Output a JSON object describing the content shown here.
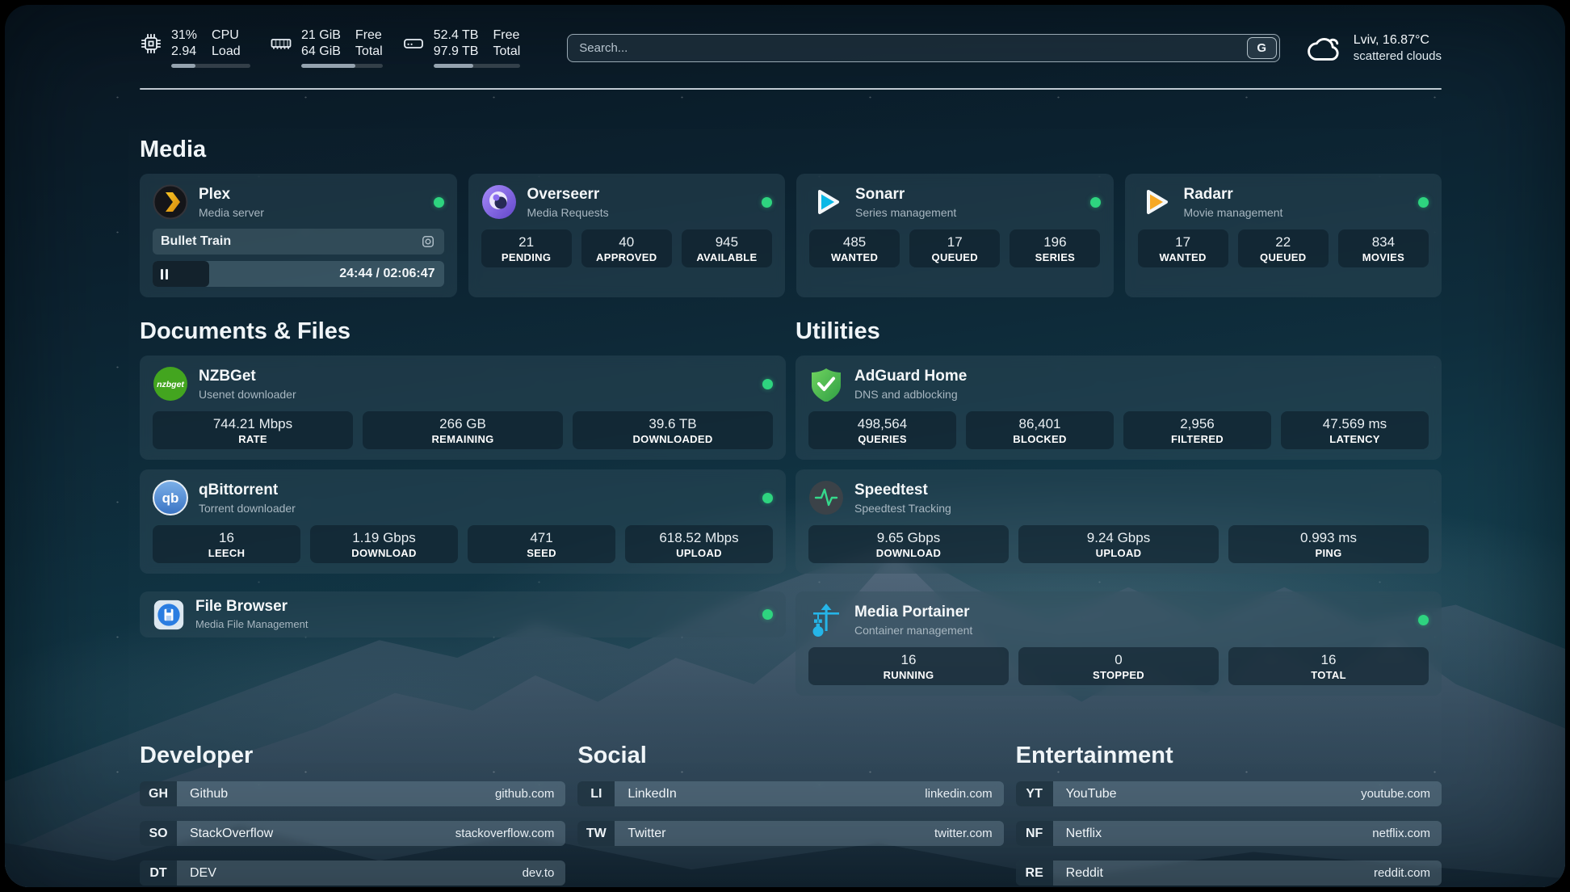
{
  "theme": {
    "status_online_color": "#2ed47f",
    "progress_fill_color": "#95a3af",
    "accent_cloud_color": "#ffffff"
  },
  "header": {
    "stats": [
      {
        "icon": "cpu-icon",
        "value_top": "31%",
        "value_bottom": "2.94",
        "label_top": "CPU",
        "label_bottom": "Load",
        "progress_pct": 31
      },
      {
        "icon": "memory-icon",
        "value_top": "21 GiB",
        "value_bottom": "64 GiB",
        "label_top": "Free",
        "label_bottom": "Total",
        "progress_pct": 67
      },
      {
        "icon": "disk-icon",
        "value_top": "52.4 TB",
        "value_bottom": "97.9 TB",
        "label_top": "Free",
        "label_bottom": "Total",
        "progress_pct": 46
      }
    ],
    "search": {
      "placeholder": "Search...",
      "button_label": "G"
    },
    "weather": {
      "location_temp": "Lviv, 16.87°C",
      "condition": "scattered clouds"
    }
  },
  "sections": {
    "media": {
      "heading": "Media",
      "plex": {
        "name": "Plex",
        "description": "Media server",
        "status": "online",
        "now_playing": "Bullet Train",
        "time_display": "24:44 / 02:06:47",
        "progress_pct": 19.5
      },
      "overseerr": {
        "name": "Overseerr",
        "description": "Media Requests",
        "status": "online",
        "stats": [
          {
            "value": "21",
            "label": "PENDING"
          },
          {
            "value": "40",
            "label": "APPROVED"
          },
          {
            "value": "945",
            "label": "AVAILABLE"
          }
        ]
      },
      "sonarr": {
        "name": "Sonarr",
        "description": "Series management",
        "status": "online",
        "stats": [
          {
            "value": "485",
            "label": "WANTED"
          },
          {
            "value": "17",
            "label": "QUEUED"
          },
          {
            "value": "196",
            "label": "SERIES"
          }
        ]
      },
      "radarr": {
        "name": "Radarr",
        "description": "Movie management",
        "status": "online",
        "stats": [
          {
            "value": "17",
            "label": "WANTED"
          },
          {
            "value": "22",
            "label": "QUEUED"
          },
          {
            "value": "834",
            "label": "MOVIES"
          }
        ]
      }
    },
    "documents": {
      "heading": "Documents & Files",
      "nzbget": {
        "name": "NZBGet",
        "description": "Usenet downloader",
        "status": "online",
        "stats": [
          {
            "value": "744.21 Mbps",
            "label": "RATE"
          },
          {
            "value": "266 GB",
            "label": "REMAINING"
          },
          {
            "value": "39.6 TB",
            "label": "DOWNLOADED"
          }
        ]
      },
      "qbittorrent": {
        "name": "qBittorrent",
        "description": "Torrent downloader",
        "status": "online",
        "stats": [
          {
            "value": "16",
            "label": "LEECH"
          },
          {
            "value": "1.19 Gbps",
            "label": "DOWNLOAD"
          },
          {
            "value": "471",
            "label": "SEED"
          },
          {
            "value": "618.52 Mbps",
            "label": "UPLOAD"
          }
        ]
      },
      "filebrowser": {
        "name": "File Browser",
        "description": "Media File Management",
        "status": "online"
      }
    },
    "utilities": {
      "heading": "Utilities",
      "adguard": {
        "name": "AdGuard Home",
        "description": "DNS and adblocking",
        "stats": [
          {
            "value": "498,564",
            "label": "QUERIES"
          },
          {
            "value": "86,401",
            "label": "BLOCKED"
          },
          {
            "value": "2,956",
            "label": "FILTERED"
          },
          {
            "value": "47.569 ms",
            "label": "LATENCY"
          }
        ]
      },
      "speedtest": {
        "name": "Speedtest",
        "description": "Speedtest Tracking",
        "stats": [
          {
            "value": "9.65 Gbps",
            "label": "DOWNLOAD"
          },
          {
            "value": "9.24 Gbps",
            "label": "UPLOAD"
          },
          {
            "value": "0.993 ms",
            "label": "PING"
          }
        ]
      },
      "portainer": {
        "name": "Media Portainer",
        "description": "Container management",
        "status": "online",
        "stats": [
          {
            "value": "16",
            "label": "RUNNING"
          },
          {
            "value": "0",
            "label": "STOPPED"
          },
          {
            "value": "16",
            "label": "TOTAL"
          }
        ]
      }
    },
    "links": {
      "developer": {
        "heading": "Developer",
        "items": [
          {
            "abbr": "GH",
            "name": "Github",
            "url": "github.com"
          },
          {
            "abbr": "SO",
            "name": "StackOverflow",
            "url": "stackoverflow.com"
          },
          {
            "abbr": "DT",
            "name": "DEV",
            "url": "dev.to"
          }
        ]
      },
      "social": {
        "heading": "Social",
        "items": [
          {
            "abbr": "LI",
            "name": "LinkedIn",
            "url": "linkedin.com"
          },
          {
            "abbr": "TW",
            "name": "Twitter",
            "url": "twitter.com"
          }
        ]
      },
      "entertainment": {
        "heading": "Entertainment",
        "items": [
          {
            "abbr": "YT",
            "name": "YouTube",
            "url": "youtube.com"
          },
          {
            "abbr": "NF",
            "name": "Netflix",
            "url": "netflix.com"
          },
          {
            "abbr": "RE",
            "name": "Reddit",
            "url": "reddit.com"
          }
        ]
      }
    }
  }
}
